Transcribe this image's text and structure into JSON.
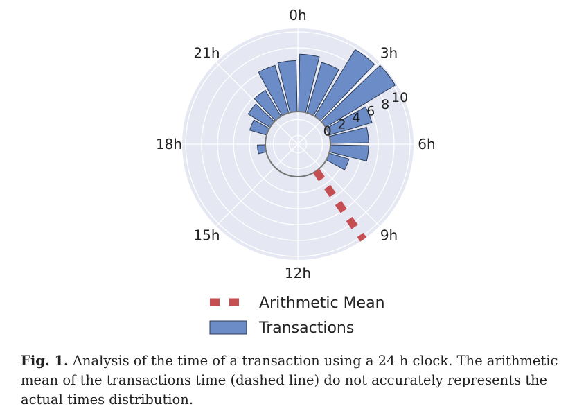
{
  "chart_data": {
    "type": "polar-bar",
    "angular_ticks": [
      "0h",
      "3h",
      "6h",
      "9h",
      "12h",
      "15h",
      "18h",
      "21h"
    ],
    "radial_ticks": [
      0,
      2,
      4,
      6,
      8,
      10
    ],
    "rlim": [
      -4,
      10
    ],
    "grid": true,
    "bins": [
      {
        "hour": 0,
        "value": 7.2
      },
      {
        "hour": 1,
        "value": 6.6
      },
      {
        "hour": 2,
        "value": 9.8
      },
      {
        "hour": 3,
        "value": 10.2
      },
      {
        "hour": 4,
        "value": 5.6
      },
      {
        "hour": 5,
        "value": 4.8
      },
      {
        "hour": 6,
        "value": 4.8
      },
      {
        "hour": 7,
        "value": 2.6
      },
      {
        "hour": 8,
        "value": 0
      },
      {
        "hour": 9,
        "value": 0
      },
      {
        "hour": 10,
        "value": 0
      },
      {
        "hour": 11,
        "value": 0
      },
      {
        "hour": 12,
        "value": 0
      },
      {
        "hour": 13,
        "value": 0
      },
      {
        "hour": 14,
        "value": 0
      },
      {
        "hour": 15,
        "value": 0
      },
      {
        "hour": 16,
        "value": 0
      },
      {
        "hour": 17,
        "value": 1.0
      },
      {
        "hour": 18,
        "value": 0
      },
      {
        "hour": 19,
        "value": 2.2
      },
      {
        "hour": 20,
        "value": 3.2
      },
      {
        "hour": 21,
        "value": 3.8
      },
      {
        "hour": 22,
        "value": 6.2
      },
      {
        "hour": 23,
        "value": 6.4
      }
    ],
    "mean_line": {
      "angle_hours": 9.7
    },
    "colors": {
      "bars": "#6b8cc6",
      "bar_edge": "#2b3a55",
      "mean": "#c44e52",
      "background": "#e5e7f2",
      "grid": "#ffffff"
    },
    "legend": {
      "placement": "bottom",
      "entries": [
        "Arithmetic Mean",
        "Transactions"
      ]
    }
  },
  "caption": {
    "label": "Fig. 1.",
    "text": "Analysis of the time of a transaction using a 24 h clock. The arithmetic mean of the transactions time (dashed line) do not accurately represents the actual times distribution."
  }
}
